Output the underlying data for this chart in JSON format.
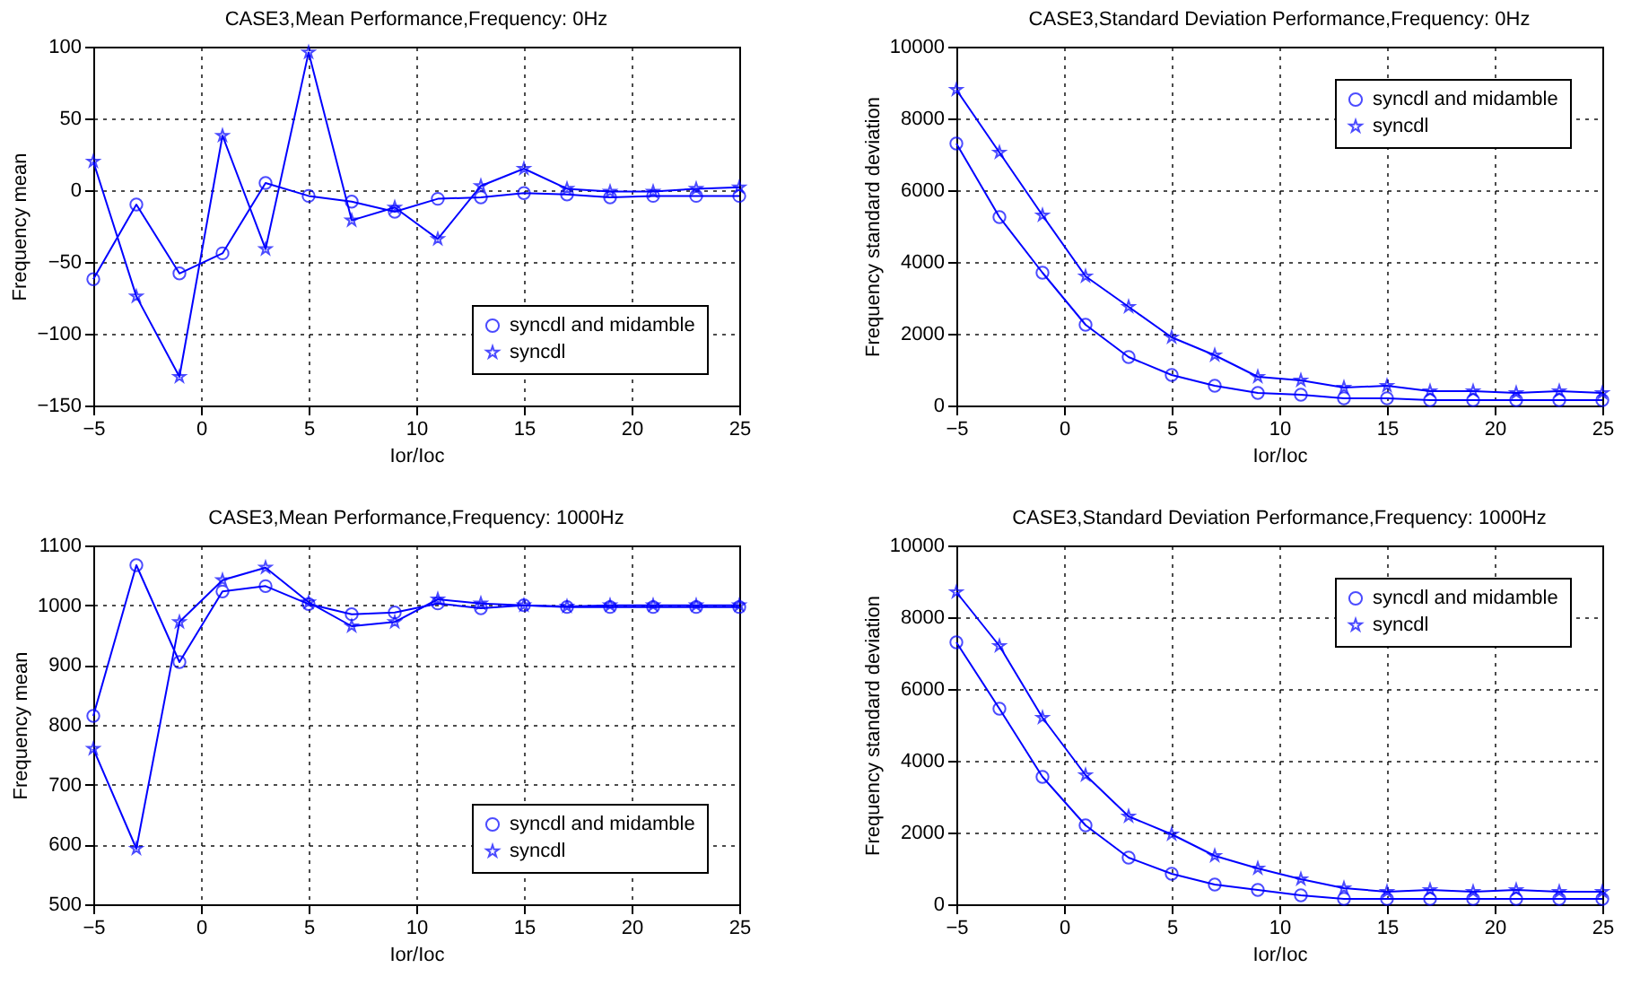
{
  "chart_data": [
    {
      "type": "line",
      "title": "CASE3,Mean Performance,Frequency: 0Hz",
      "xlabel": "Ior/Ioc",
      "ylabel": "Frequency mean",
      "x": [
        -5,
        -3,
        -1,
        1,
        3,
        5,
        7,
        9,
        11,
        13,
        15,
        17,
        19,
        21,
        23,
        25
      ],
      "xlim": [
        -5,
        25
      ],
      "xticks": [
        -5,
        0,
        5,
        10,
        15,
        20,
        25
      ],
      "ylim": [
        -150,
        100
      ],
      "yticks": [
        -150,
        -100,
        -50,
        0,
        50,
        100
      ],
      "grid": true,
      "legend": "bottom right",
      "series": [
        {
          "name": "syncdl and midamble",
          "color": "#0000ff",
          "marker": "circle",
          "values": [
            -62,
            -10,
            -58,
            -44,
            5,
            -4,
            -8,
            -15,
            -6,
            -5,
            -2,
            -3,
            -5,
            -4,
            -4,
            -4
          ]
        },
        {
          "name": "syncdl",
          "color": "#0000ff",
          "marker": "star",
          "values": [
            20,
            -74,
            -130,
            38,
            -41,
            96,
            -21,
            -12,
            -34,
            3,
            15,
            1,
            -1,
            -1,
            1,
            2
          ]
        }
      ]
    },
    {
      "type": "line",
      "title": "CASE3,Standard Deviation Performance,Frequency: 0Hz",
      "xlabel": "Ior/Ioc",
      "ylabel": "Frequency standard deviation",
      "x": [
        -5,
        -3,
        -1,
        1,
        3,
        5,
        7,
        9,
        11,
        13,
        15,
        17,
        19,
        21,
        23,
        25
      ],
      "xlim": [
        -5,
        25
      ],
      "xticks": [
        -5,
        0,
        5,
        10,
        15,
        20,
        25
      ],
      "ylim": [
        0,
        10000
      ],
      "yticks": [
        0,
        2000,
        4000,
        6000,
        8000,
        10000
      ],
      "grid": true,
      "legend": "top right",
      "series": [
        {
          "name": "syncdl and midamble",
          "color": "#0000ff",
          "marker": "circle",
          "values": [
            7300,
            5250,
            3700,
            2250,
            1350,
            850,
            550,
            350,
            300,
            200,
            200,
            150,
            150,
            150,
            150,
            150
          ]
        },
        {
          "name": "syncdl",
          "color": "#0000ff",
          "marker": "star",
          "values": [
            8800,
            7050,
            5300,
            3600,
            2750,
            1900,
            1400,
            800,
            700,
            500,
            550,
            400,
            400,
            350,
            400,
            350
          ]
        }
      ]
    },
    {
      "type": "line",
      "title": "CASE3,Mean Performance,Frequency: 1000Hz",
      "xlabel": "Ior/Ioc",
      "ylabel": "Frequency mean",
      "x": [
        -5,
        -3,
        -1,
        1,
        3,
        5,
        7,
        9,
        11,
        13,
        15,
        17,
        19,
        21,
        23,
        25
      ],
      "xlim": [
        -5,
        25
      ],
      "xticks": [
        -5,
        0,
        5,
        10,
        15,
        20,
        25
      ],
      "ylim": [
        500,
        1100
      ],
      "yticks": [
        500,
        600,
        700,
        800,
        900,
        1000,
        1100
      ],
      "grid": true,
      "legend": "bottom right",
      "series": [
        {
          "name": "syncdl and midamble",
          "color": "#0000ff",
          "marker": "circle",
          "values": [
            815,
            1067,
            905,
            1023,
            1032,
            1002,
            985,
            988,
            1003,
            995,
            1000,
            997,
            997,
            997,
            997,
            997
          ]
        },
        {
          "name": "syncdl",
          "color": "#0000ff",
          "marker": "star",
          "values": [
            760,
            593,
            972,
            1042,
            1063,
            1005,
            965,
            972,
            1010,
            1003,
            1000,
            998,
            1000,
            1000,
            1000,
            1000
          ]
        }
      ]
    },
    {
      "type": "line",
      "title": "CASE3,Standard Deviation Performance,Frequency: 1000Hz",
      "xlabel": "Ior/Ioc",
      "ylabel": "Frequency standard deviation",
      "x": [
        -5,
        -3,
        -1,
        1,
        3,
        5,
        7,
        9,
        11,
        13,
        15,
        17,
        19,
        21,
        23,
        25
      ],
      "xlim": [
        -5,
        25
      ],
      "xticks": [
        -5,
        0,
        5,
        10,
        15,
        20,
        25
      ],
      "ylim": [
        0,
        10000
      ],
      "yticks": [
        0,
        2000,
        4000,
        6000,
        8000,
        10000
      ],
      "grid": true,
      "legend": "top right",
      "series": [
        {
          "name": "syncdl and midamble",
          "color": "#0000ff",
          "marker": "circle",
          "values": [
            7300,
            5450,
            3550,
            2200,
            1300,
            850,
            550,
            400,
            250,
            150,
            150,
            150,
            150,
            150,
            150,
            150
          ]
        },
        {
          "name": "syncdl",
          "color": "#0000ff",
          "marker": "star",
          "values": [
            8700,
            7200,
            5200,
            3600,
            2450,
            1950,
            1350,
            1000,
            700,
            450,
            350,
            400,
            350,
            400,
            350,
            350
          ]
        }
      ]
    }
  ]
}
